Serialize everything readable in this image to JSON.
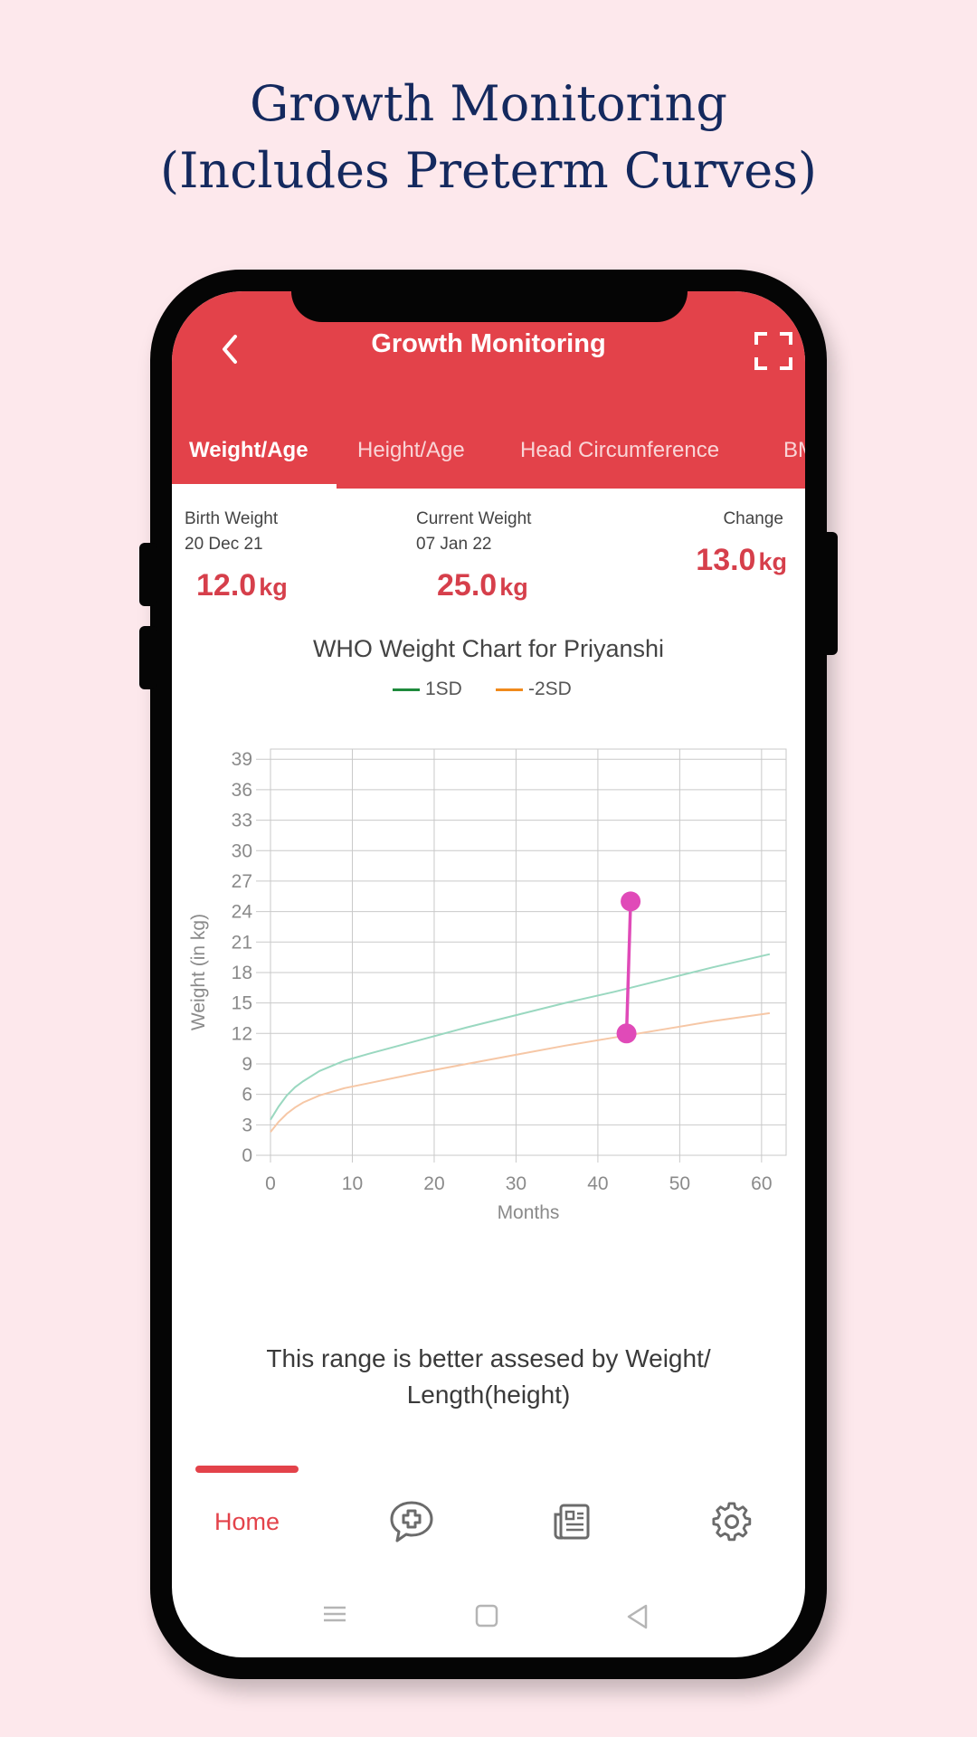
{
  "headline": {
    "line1": "Growth Monitoring",
    "line2": "(Includes Preterm Curves)"
  },
  "app_bar": {
    "title": "Growth Monitoring",
    "back_icon": "chevron-left-icon",
    "expand_icon": "fullscreen-icon",
    "color": "#e3424a"
  },
  "tabs": [
    {
      "label": "Weight/Age",
      "active": true
    },
    {
      "label": "Height/Age",
      "active": false
    },
    {
      "label": "Head Circumference",
      "active": false
    },
    {
      "label": "BM",
      "active": false
    }
  ],
  "stats": {
    "birth": {
      "label": "Birth Weight",
      "date": "20 Dec 21",
      "value": "12.0",
      "unit": "kg"
    },
    "current": {
      "label": "Current Weight",
      "date": "07 Jan 22",
      "value": "25.0",
      "unit": "kg"
    },
    "change": {
      "label": "Change",
      "value": "13.0",
      "unit": "kg"
    }
  },
  "chart_title": "WHO Weight Chart for Priyanshi",
  "chart_data": {
    "type": "line",
    "xlabel": "Months",
    "ylabel": "Weight (in kg)",
    "xlim": [
      0,
      63
    ],
    "ylim": [
      0,
      40
    ],
    "xticks": [
      0,
      10,
      20,
      30,
      40,
      50,
      60
    ],
    "yticks": [
      0,
      3,
      6,
      9,
      12,
      15,
      18,
      21,
      24,
      27,
      30,
      33,
      36,
      39
    ],
    "grid": true,
    "legend_position": "top-center",
    "series": [
      {
        "name": "1SD",
        "color": "#1e8a3c",
        "line_color": "#9ad8c0",
        "points": [
          [
            0,
            3.5
          ],
          [
            1,
            4.8
          ],
          [
            2,
            5.9
          ],
          [
            3,
            6.7
          ],
          [
            4,
            7.3
          ],
          [
            6,
            8.3
          ],
          [
            9,
            9.3
          ],
          [
            12,
            10.0
          ],
          [
            18,
            11.3
          ],
          [
            24,
            12.6
          ],
          [
            30,
            13.8
          ],
          [
            36,
            15.0
          ],
          [
            42,
            16.1
          ],
          [
            48,
            17.3
          ],
          [
            54,
            18.5
          ],
          [
            61,
            19.8
          ]
        ]
      },
      {
        "name": "-2SD",
        "color": "#f08a1c",
        "line_color": "#f6c7a6",
        "points": [
          [
            0,
            2.3
          ],
          [
            1,
            3.3
          ],
          [
            2,
            4.1
          ],
          [
            3,
            4.7
          ],
          [
            4,
            5.2
          ],
          [
            6,
            5.9
          ],
          [
            9,
            6.6
          ],
          [
            12,
            7.1
          ],
          [
            18,
            8.1
          ],
          [
            24,
            9.0
          ],
          [
            30,
            9.9
          ],
          [
            36,
            10.8
          ],
          [
            42,
            11.6
          ],
          [
            48,
            12.4
          ],
          [
            54,
            13.2
          ],
          [
            61,
            14.0
          ]
        ]
      },
      {
        "name": "",
        "color": "#e04ab8",
        "marker": "circle",
        "points": [
          [
            43.5,
            12.0
          ],
          [
            44,
            25.0
          ]
        ]
      }
    ]
  },
  "note": "This range is better assesed by Weight/ Length(height)",
  "bottom_nav": {
    "items": [
      {
        "label": "Home",
        "icon": "home",
        "active": true
      },
      {
        "label": "",
        "icon": "chat-medical-icon",
        "active": false
      },
      {
        "label": "",
        "icon": "newspaper-icon",
        "active": false
      },
      {
        "label": "",
        "icon": "gear-icon",
        "active": false
      }
    ]
  },
  "system_nav": [
    "menu-icon",
    "home-square-icon",
    "back-triangle-icon"
  ]
}
